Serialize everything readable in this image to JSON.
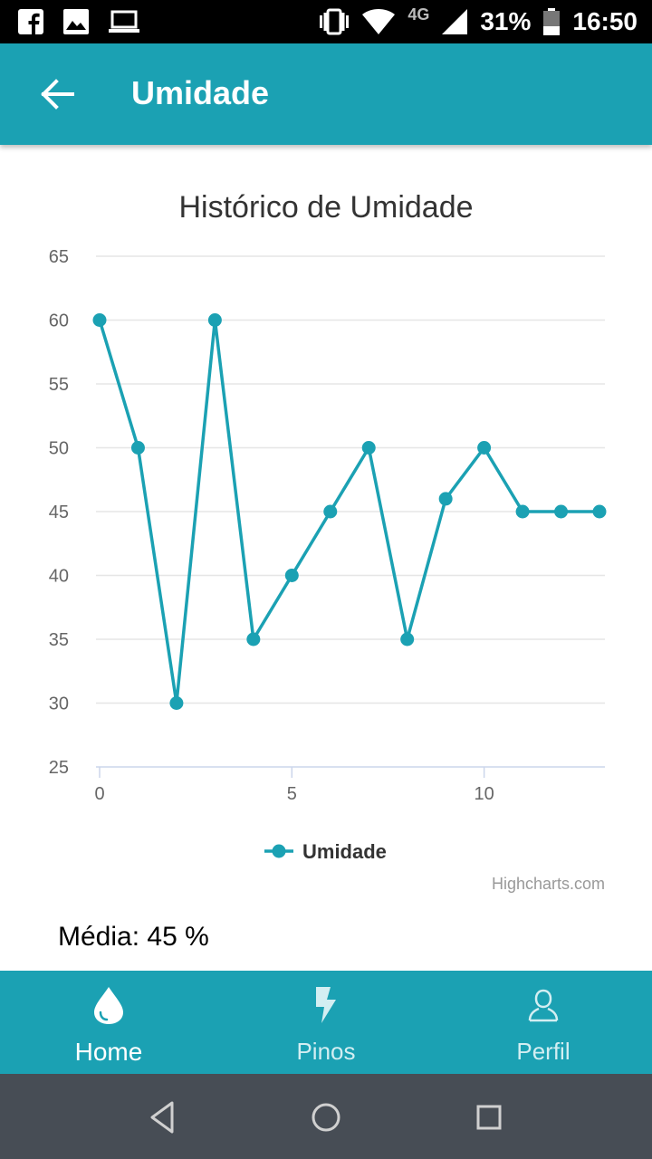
{
  "status_bar": {
    "network": "4G",
    "battery": "31%",
    "time": "16:50",
    "icons": [
      "facebook-icon",
      "image-icon",
      "laptop-icon",
      "vibrate-icon",
      "wifi-icon",
      "signal-icon",
      "battery-icon"
    ]
  },
  "app_bar": {
    "title": "Umidade",
    "back_icon": "arrow-left-icon"
  },
  "chart_data": {
    "type": "line",
    "title": "Histórico de Umidade",
    "xlabel": "",
    "ylabel": "",
    "x": [
      0,
      1,
      2,
      3,
      4,
      5,
      6,
      7,
      8,
      9,
      10,
      11,
      12,
      13
    ],
    "series": [
      {
        "name": "Umidade",
        "values": [
          60,
          50,
          30,
          60,
          35,
          40,
          45,
          50,
          35,
          46,
          50,
          45,
          45,
          45
        ],
        "color": "#1ba1b3"
      }
    ],
    "xlim": [
      0,
      13
    ],
    "ylim": [
      25,
      65
    ],
    "x_ticks": [
      "0",
      "5",
      "10"
    ],
    "y_ticks": [
      "25",
      "30",
      "35",
      "40",
      "45",
      "50",
      "55",
      "60",
      "65"
    ],
    "grid": true,
    "legend_position": "bottom-center",
    "credits": "Highcharts.com"
  },
  "summary": {
    "media_text": "Média: 45 %"
  },
  "bottom_nav": {
    "items": [
      {
        "label": "Home",
        "icon": "drop-icon",
        "active": true
      },
      {
        "label": "Pinos",
        "icon": "lightning-icon",
        "active": false
      },
      {
        "label": "Perfil",
        "icon": "user-icon",
        "active": false
      }
    ]
  },
  "colors": {
    "primary": "#1ba1b3",
    "system_nav": "#474d55",
    "grid": "#e6e6e6",
    "axis_text": "#666666"
  }
}
